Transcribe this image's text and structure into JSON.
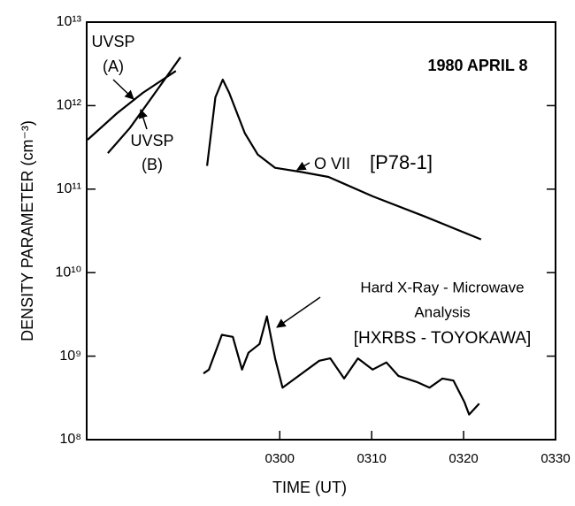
{
  "chart_data": {
    "type": "line",
    "title": "1980 APRIL 8",
    "xlabel": "TIME (UT)",
    "ylabel": "DENSITY PARAMETER (cm⁻³)",
    "log_y": true,
    "xlim": [
      159,
      210
    ],
    "xticks": [
      {
        "value": 180,
        "label": "0300"
      },
      {
        "value": 190,
        "label": "0310"
      },
      {
        "value": 200,
        "label": "0320"
      },
      {
        "value": 210,
        "label": "0330"
      }
    ],
    "ylim": [
      100000000,
      10000000000000
    ],
    "yticks": [
      {
        "value": 100000000,
        "label": "10⁸"
      },
      {
        "value": 1000000000,
        "label": "10⁹"
      },
      {
        "value": 10000000000,
        "label": "10¹⁰"
      },
      {
        "value": 100000000000,
        "label": "10¹¹"
      },
      {
        "value": 1000000000000,
        "label": "10¹²"
      },
      {
        "value": 10000000000000,
        "label": "10¹³"
      }
    ],
    "series": [
      {
        "color": "#000000",
        "x": [
          159.1,
          162.3,
          165.1,
          168.7
        ],
        "values": [
          390000000000,
          810000000000,
          1420000000000,
          2600000000000
        ]
      },
      {
        "color": "#000000",
        "x": [
          161.3,
          163.7,
          166.1,
          169.2
        ],
        "values": [
          270000000000,
          540000000000,
          1260000000000,
          3800000000000
        ]
      },
      {
        "color": "#000000",
        "x": [
          172.1,
          173.0,
          173.8,
          174.5,
          176.2,
          177.6,
          179.5,
          182.4,
          185.3,
          190.1,
          195.8,
          201.9
        ],
        "values": [
          190000000000,
          1260000000000,
          2050000000000,
          1420000000000,
          470000000000,
          260000000000,
          180000000000,
          160000000000,
          140000000000,
          82000000000,
          47000000000,
          25000000000
        ]
      },
      {
        "color": "#000000",
        "x": [
          171.7,
          172.3,
          173.7,
          174.9,
          175.9,
          176.6,
          177.8,
          178.6,
          179.5,
          180.3,
          182.4,
          184.3,
          185.5,
          187.0,
          188.5,
          190.1,
          191.6,
          192.9,
          194.9,
          196.3,
          197.7,
          198.9,
          200.1,
          200.6,
          201.7
        ],
        "values": [
          620000000,
          690000000,
          1800000000,
          1700000000,
          690000000,
          1100000000,
          1400000000,
          3000000000,
          940000000,
          420000000,
          620000000,
          880000000,
          940000000,
          540000000,
          940000000,
          690000000,
          840000000,
          580000000,
          490000000,
          420000000,
          540000000,
          510000000,
          280000000,
          200000000,
          270000000
        ]
      }
    ],
    "annotations": [
      "UVSP",
      "(A)",
      "UVSP",
      "(B)",
      "O VII",
      "[P78-1]",
      "Hard X-Ray - Microwave",
      "Analysis",
      "[HXRBS - TOYOKAWA]"
    ]
  }
}
